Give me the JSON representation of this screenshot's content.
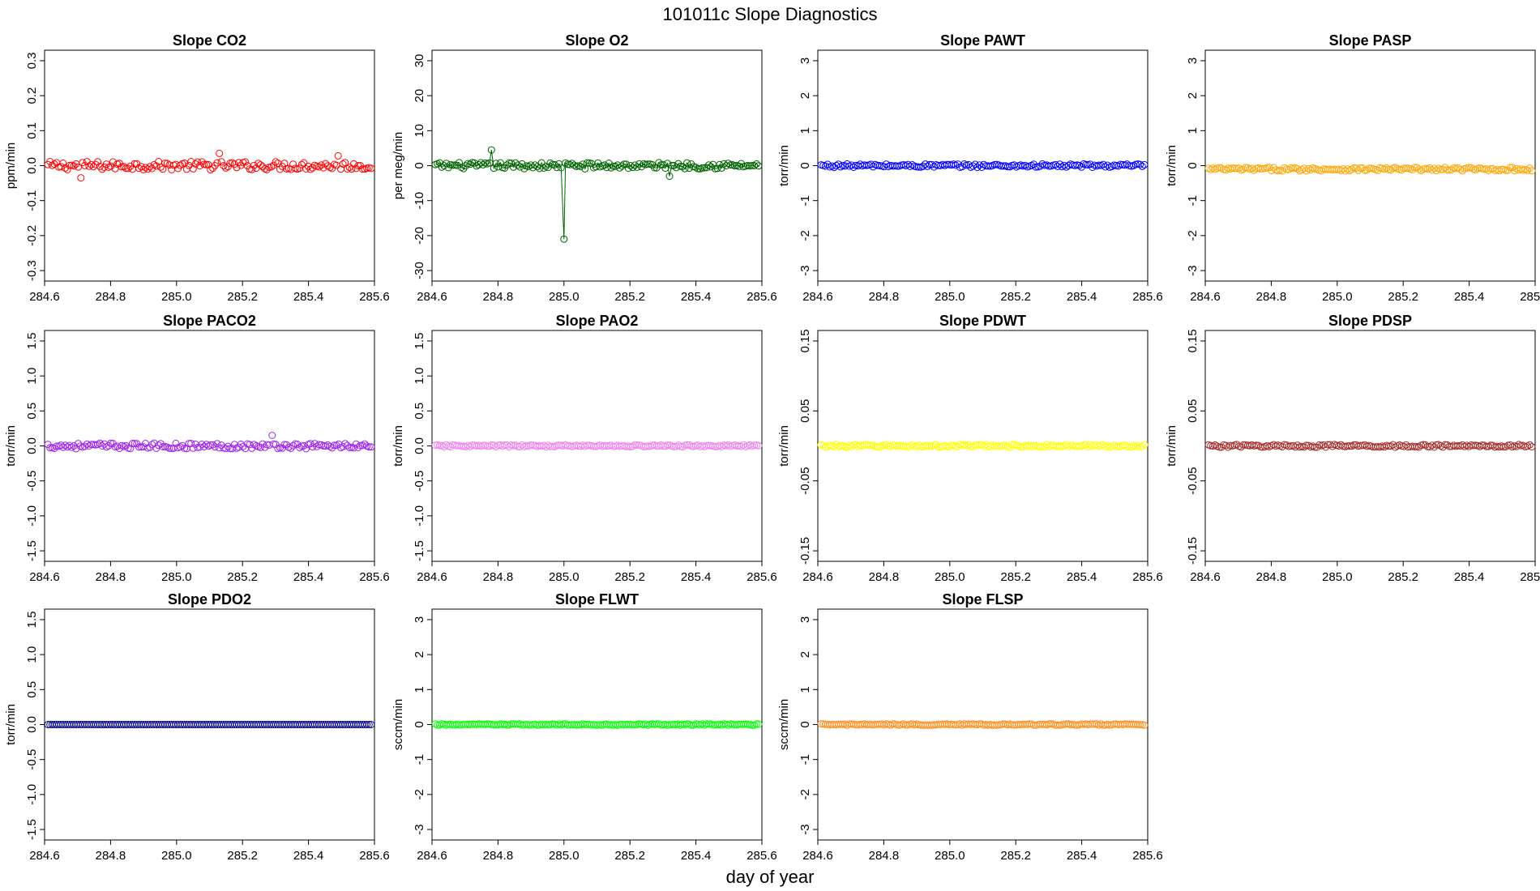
{
  "suptitle": "101011c   Slope Diagnostics",
  "xlabel": "day of year",
  "x_range": [
    284.6,
    285.6
  ],
  "x_ticks": [
    "284.6",
    "284.8",
    "285.0",
    "285.2",
    "285.4",
    "285.6"
  ],
  "chart_data": [
    {
      "type": "scatter",
      "title": "Slope CO2",
      "ylabel": "ppm/min",
      "color": "#ff0000",
      "ylim": [
        -0.33,
        0.33
      ],
      "yticks": [
        "-0.3",
        "-0.2",
        "-0.1",
        "0.0",
        "0.1",
        "0.2",
        "0.3"
      ],
      "x_range": [
        284.61,
        285.59
      ],
      "n_points": 150,
      "y_center": 0.0,
      "y_spread": 0.012,
      "outliers": [
        {
          "x": 284.71,
          "y": -0.035
        },
        {
          "x": 285.13,
          "y": 0.035
        },
        {
          "x": 285.49,
          "y": 0.028
        }
      ]
    },
    {
      "type": "line+scatter",
      "title": "Slope O2",
      "ylabel": "per meg/min",
      "color": "#006400",
      "ylim": [
        -33,
        33
      ],
      "yticks": [
        "-30",
        "-20",
        "-10",
        "0",
        "10",
        "20",
        "30"
      ],
      "x_range": [
        284.61,
        285.59
      ],
      "n_points": 150,
      "y_center": 0.0,
      "y_spread": 0.9,
      "outliers": [
        {
          "x": 284.78,
          "y": 4.5
        },
        {
          "x": 285.0,
          "y": -21
        },
        {
          "x": 285.32,
          "y": -3
        }
      ]
    },
    {
      "type": "scatter",
      "title": "Slope PAWT",
      "ylabel": "torr/min",
      "color": "#0000ff",
      "ylim": [
        -3.3,
        3.3
      ],
      "yticks": [
        "-3",
        "-2",
        "-1",
        "0",
        "1",
        "2",
        "3"
      ],
      "x_range": [
        284.61,
        285.59
      ],
      "n_points": 150,
      "y_center": 0.0,
      "y_spread": 0.05,
      "outliers": []
    },
    {
      "type": "scatter",
      "title": "Slope PASP",
      "ylabel": "torr/min",
      "color": "#ffa500",
      "ylim": [
        -3.3,
        3.3
      ],
      "yticks": [
        "-3",
        "-2",
        "-1",
        "0",
        "1",
        "2",
        "3"
      ],
      "x_range": [
        284.61,
        285.59
      ],
      "n_points": 150,
      "y_center": -0.1,
      "y_spread": 0.05,
      "outliers": []
    },
    {
      "type": "scatter",
      "title": "Slope PACO2",
      "ylabel": "torr/min",
      "color": "#a020f0",
      "ylim": [
        -1.65,
        1.65
      ],
      "yticks": [
        "-1.5",
        "-1.0",
        "-0.5",
        "0.0",
        "0.5",
        "1.0",
        "1.5"
      ],
      "x_range": [
        284.61,
        285.59
      ],
      "n_points": 150,
      "y_center": 0.0,
      "y_spread": 0.04,
      "outliers": [
        {
          "x": 285.29,
          "y": 0.15
        }
      ]
    },
    {
      "type": "scatter",
      "title": "Slope PAO2",
      "ylabel": "torr/min",
      "color": "#ee82ee",
      "ylim": [
        -1.65,
        1.65
      ],
      "yticks": [
        "-1.5",
        "-1.0",
        "-0.5",
        "0.0",
        "0.5",
        "1.0",
        "1.5"
      ],
      "x_range": [
        284.61,
        285.59
      ],
      "n_points": 150,
      "y_center": 0.0,
      "y_spread": 0.015,
      "outliers": []
    },
    {
      "type": "scatter",
      "title": "Slope PDWT",
      "ylabel": "torr/min",
      "color": "#ffff00",
      "ylim": [
        -0.165,
        0.165
      ],
      "yticks": [
        "-0.15",
        "-0.05",
        "0.05",
        "0.15"
      ],
      "x_range": [
        284.61,
        285.59
      ],
      "n_points": 150,
      "y_center": 0.0,
      "y_spread": 0.002,
      "outliers": []
    },
    {
      "type": "scatter",
      "title": "Slope PDSP",
      "ylabel": "torr/min",
      "color": "#a52a2a",
      "ylim": [
        -0.165,
        0.165
      ],
      "yticks": [
        "-0.15",
        "-0.05",
        "0.05",
        "0.15"
      ],
      "x_range": [
        284.61,
        285.59
      ],
      "n_points": 150,
      "y_center": 0.0,
      "y_spread": 0.002,
      "outliers": []
    },
    {
      "type": "scatter",
      "title": "Slope PDO2",
      "ylabel": "torr/min",
      "color": "#00008b",
      "ylim": [
        -1.65,
        1.65
      ],
      "yticks": [
        "-1.5",
        "-1.0",
        "-0.5",
        "0.0",
        "0.5",
        "1.0",
        "1.5"
      ],
      "x_range": [
        284.61,
        285.59
      ],
      "n_points": 150,
      "y_center": 0.0,
      "y_spread": 0.0,
      "outliers": []
    },
    {
      "type": "scatter",
      "title": "Slope FLWT",
      "ylabel": "sccm/min",
      "color": "#00ff00",
      "ylim": [
        -3.3,
        3.3
      ],
      "yticks": [
        "-3",
        "-2",
        "-1",
        "0",
        "1",
        "2",
        "3"
      ],
      "x_range": [
        284.61,
        285.59
      ],
      "n_points": 150,
      "y_center": 0.0,
      "y_spread": 0.02,
      "outliers": []
    },
    {
      "type": "scatter",
      "title": "Slope FLSP",
      "ylabel": "sccm/min",
      "color": "#ff8c1a",
      "ylim": [
        -3.3,
        3.3
      ],
      "yticks": [
        "-3",
        "-2",
        "-1",
        "0",
        "1",
        "2",
        "3"
      ],
      "x_range": [
        284.61,
        285.59
      ],
      "n_points": 150,
      "y_center": 0.0,
      "y_spread": 0.02,
      "outliers": []
    }
  ]
}
